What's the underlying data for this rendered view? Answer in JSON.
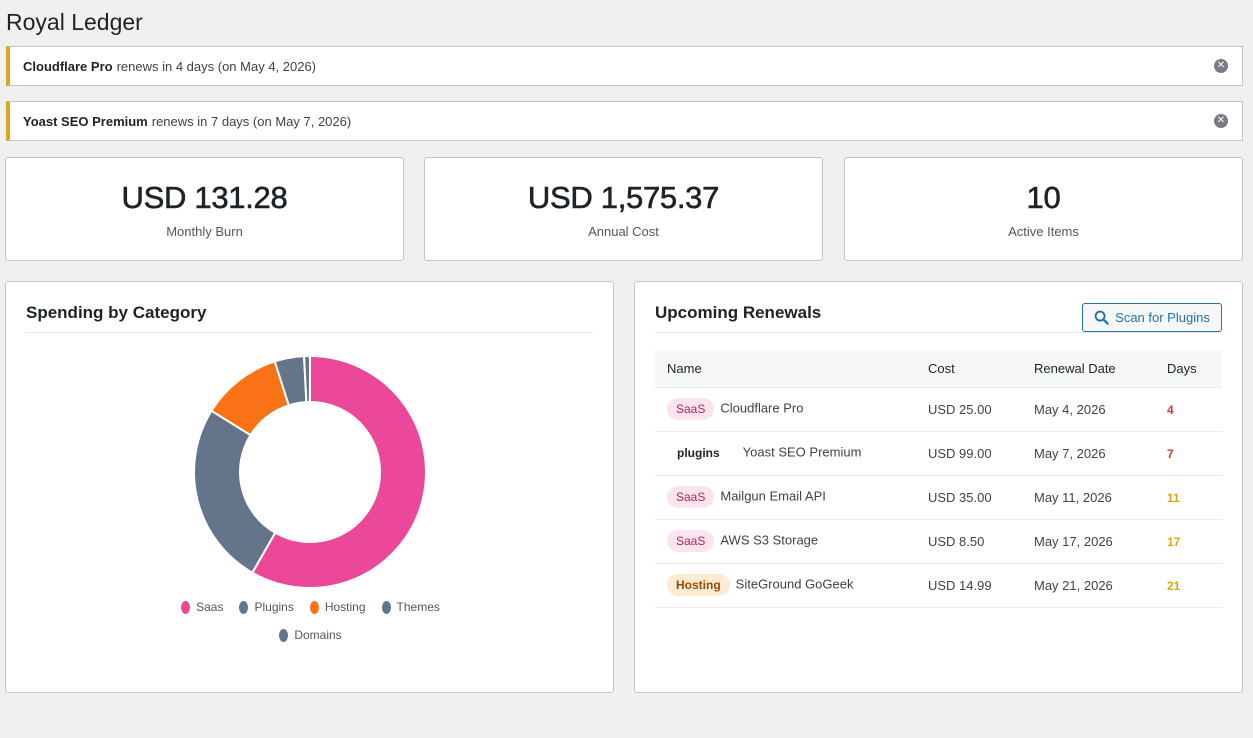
{
  "page": {
    "title": "Royal Ledger"
  },
  "notices": [
    {
      "item": "Cloudflare Pro",
      "text": "renews in 4 days (on May 4, 2026)",
      "dismiss_icon": "close-circle-icon"
    },
    {
      "item": "Yoast SEO Premium",
      "text": "renews in 7 days (on May 7, 2026)",
      "dismiss_icon": "close-circle-icon"
    }
  ],
  "stats": [
    {
      "value": "USD 131.28",
      "label": "Monthly Burn"
    },
    {
      "value": "USD 1,575.37",
      "label": "Annual Cost"
    },
    {
      "value": "10",
      "label": "Active Items"
    }
  ],
  "spending": {
    "title": "Spending by Category",
    "chart_data": {
      "type": "pie",
      "categories": [
        "Saas",
        "Plugins",
        "Hosting",
        "Themes",
        "Domains"
      ],
      "values": [
        57,
        25,
        11,
        4,
        0.8
      ],
      "colors": [
        "#ec4899",
        "#64748b",
        "#f97316",
        "#64748b",
        "#64748b"
      ],
      "legend_position": "bottom"
    }
  },
  "renewals": {
    "title": "Upcoming Renewals",
    "scan_button": "Scan for Plugins",
    "columns": [
      "Name",
      "Cost",
      "Renewal Date",
      "Days"
    ],
    "rows": [
      {
        "badge": "SaaS",
        "badge_type": "saas",
        "name": "Cloudflare Pro",
        "cost": "USD 25.00",
        "date": "May 4, 2026",
        "days": "4",
        "urgency": "urgent"
      },
      {
        "badge": "plugins",
        "badge_type": "plugins",
        "name": "Yoast SEO Premium",
        "cost": "USD 99.00",
        "date": "May 7, 2026",
        "days": "7",
        "urgency": "urgent"
      },
      {
        "badge": "SaaS",
        "badge_type": "saas",
        "name": "Mailgun Email API",
        "cost": "USD 35.00",
        "date": "May 11, 2026",
        "days": "11",
        "urgency": "soon"
      },
      {
        "badge": "SaaS",
        "badge_type": "saas",
        "name": "AWS S3 Storage",
        "cost": "USD 8.50",
        "date": "May 17, 2026",
        "days": "17",
        "urgency": "soon"
      },
      {
        "badge": "Hosting",
        "badge_type": "hosting",
        "name": "SiteGround GoGeek",
        "cost": "USD 14.99",
        "date": "May 21, 2026",
        "days": "21",
        "urgency": "soon"
      }
    ]
  }
}
